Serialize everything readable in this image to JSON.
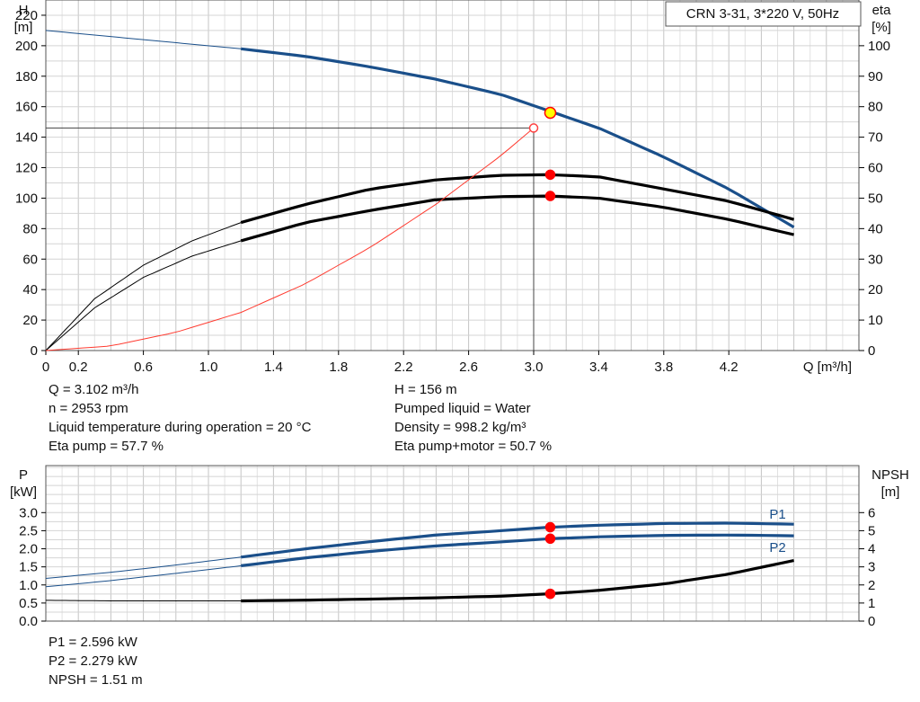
{
  "chart_data": [
    {
      "type": "line",
      "title": "CRN 3-31, 3*220 V, 50Hz",
      "xlabel": "Q [m³/h]",
      "ylabel_name": "H",
      "ylabel_unit": "[m]",
      "y2label_name": "eta",
      "y2label_unit": "[%]",
      "xlim": [
        0,
        5
      ],
      "ylim": [
        0,
        230
      ],
      "y2lim": [
        0,
        115
      ],
      "grid": true,
      "x_ticks": [
        "0",
        "0.2",
        "0.6",
        "1.0",
        "1.4",
        "1.8",
        "2.2",
        "2.6",
        "3.0",
        "3.4",
        "3.8",
        "4.2"
      ],
      "x_tick_values": [
        0,
        0.2,
        0.6,
        1.0,
        1.4,
        1.8,
        2.2,
        2.6,
        3.0,
        3.4,
        3.8,
        4.2
      ],
      "y_ticks": [
        "0",
        "20",
        "40",
        "60",
        "80",
        "100",
        "120",
        "140",
        "160",
        "180",
        "200",
        "220"
      ],
      "y_tick_values": [
        0,
        20,
        40,
        60,
        80,
        100,
        120,
        140,
        160,
        180,
        200,
        220
      ],
      "y2_ticks": [
        "0",
        "10",
        "20",
        "30",
        "40",
        "50",
        "60",
        "70",
        "80",
        "90",
        "100"
      ],
      "y2_tick_values": [
        0,
        10,
        20,
        30,
        40,
        50,
        60,
        70,
        80,
        90,
        100
      ],
      "series": [
        {
          "axis": "left",
          "color": "#1a4f8a",
          "thin_x": [
            0,
            1.2
          ],
          "thick_x": [
            1.2,
            4.6
          ],
          "x": [
            0,
            0.4,
            0.8,
            1.2,
            1.6,
            2.0,
            2.4,
            2.8,
            3.1,
            3.4,
            3.8,
            4.2,
            4.6
          ],
          "y": [
            210,
            206,
            202,
            198,
            193,
            186,
            178,
            168,
            157,
            146,
            127,
            106,
            81
          ]
        },
        {
          "axis": "right",
          "color": "#000000",
          "thin_x": [
            0,
            1.2
          ],
          "thick_x": [
            1.2,
            4.6
          ],
          "x": [
            0,
            0.3,
            0.6,
            0.9,
            1.2,
            1.6,
            2.0,
            2.4,
            2.8,
            3.1,
            3.4,
            3.8,
            4.2,
            4.6
          ],
          "y": [
            0,
            17,
            28,
            36,
            42,
            48,
            53,
            56,
            57.5,
            57.7,
            57,
            53,
            49,
            43
          ]
        },
        {
          "axis": "right",
          "color": "#000000",
          "thin_x": [
            0,
            1.2
          ],
          "thick_x": [
            1.2,
            4.6
          ],
          "x": [
            0,
            0.3,
            0.6,
            0.9,
            1.2,
            1.6,
            2.0,
            2.4,
            2.8,
            3.1,
            3.4,
            3.8,
            4.2,
            4.6
          ],
          "y": [
            0,
            14,
            24,
            31,
            36,
            42,
            46,
            49.5,
            50.5,
            50.7,
            50,
            47,
            43,
            38
          ]
        },
        {
          "axis": "left",
          "color": "#ff3b30",
          "thin_x": [
            0,
            3.0
          ],
          "thick_x": [
            3.0,
            3.0
          ],
          "x": [
            0,
            0.4,
            0.8,
            1.2,
            1.6,
            2.0,
            2.4,
            2.8,
            3.0
          ],
          "y": [
            0,
            3,
            12,
            25,
            44,
            68,
            96,
            128,
            146
          ]
        }
      ],
      "markers": [
        {
          "x": 3.102,
          "y": 156,
          "axis": "left",
          "fill": "#ffff00",
          "stroke": "#ff0000",
          "r": 6
        },
        {
          "x": 3.102,
          "y": 57.7,
          "axis": "right",
          "fill": "#ff0000",
          "stroke": "#ff0000",
          "r": 5
        },
        {
          "x": 3.102,
          "y": 50.7,
          "axis": "right",
          "fill": "#ff0000",
          "stroke": "#ff0000",
          "r": 5
        },
        {
          "x": 3.0,
          "y": 146,
          "axis": "left",
          "fill": "#ffffff",
          "stroke": "#ff4040",
          "r": 4.5
        }
      ],
      "crosshair": {
        "x": 3.0,
        "y": 146
      }
    },
    {
      "type": "line",
      "title": "",
      "xlabel": "",
      "ylabel_name": "P",
      "ylabel_unit": "[kW]",
      "y2label_name": "NPSH",
      "y2label_unit": "[m]",
      "xlim": [
        0,
        5
      ],
      "ylim": [
        0,
        4.3
      ],
      "y2lim": [
        0,
        8.6
      ],
      "grid": true,
      "y_ticks": [
        "0.0",
        "0.5",
        "1.0",
        "1.5",
        "2.0",
        "2.5",
        "3.0"
      ],
      "y_tick_values": [
        0,
        0.5,
        1.0,
        1.5,
        2.0,
        2.5,
        3.0
      ],
      "y2_ticks": [
        "0",
        "1",
        "2",
        "3",
        "4",
        "5",
        "6"
      ],
      "y2_tick_values": [
        0,
        1,
        2,
        3,
        4,
        5,
        6
      ],
      "series": [
        {
          "name": "P1",
          "axis": "left",
          "color": "#1a4f8a",
          "thin_x": [
            0,
            1.2
          ],
          "thick_x": [
            1.2,
            4.6
          ],
          "x": [
            0,
            0.4,
            0.8,
            1.2,
            1.6,
            2.0,
            2.4,
            2.8,
            3.1,
            3.4,
            3.8,
            4.2,
            4.6
          ],
          "y": [
            1.18,
            1.35,
            1.55,
            1.77,
            2.0,
            2.2,
            2.38,
            2.5,
            2.596,
            2.65,
            2.7,
            2.71,
            2.68
          ]
        },
        {
          "name": "P2",
          "axis": "left",
          "color": "#1a4f8a",
          "thin_x": [
            0,
            1.2
          ],
          "thick_x": [
            1.2,
            4.6
          ],
          "x": [
            0,
            0.4,
            0.8,
            1.2,
            1.6,
            2.0,
            2.4,
            2.8,
            3.1,
            3.4,
            3.8,
            4.2,
            4.6
          ],
          "y": [
            0.95,
            1.12,
            1.32,
            1.53,
            1.75,
            1.93,
            2.08,
            2.19,
            2.279,
            2.33,
            2.37,
            2.38,
            2.36
          ]
        },
        {
          "axis": "right",
          "color": "#000000",
          "thin_x": [
            0,
            1.2
          ],
          "thick_x": [
            1.2,
            4.6
          ],
          "x": [
            0,
            0.4,
            0.8,
            1.2,
            1.6,
            2.0,
            2.4,
            2.8,
            3.1,
            3.4,
            3.8,
            4.2,
            4.6
          ],
          "y": [
            1.15,
            1.12,
            1.12,
            1.12,
            1.16,
            1.22,
            1.29,
            1.38,
            1.51,
            1.7,
            2.05,
            2.6,
            3.35
          ]
        }
      ],
      "series_labels": [
        "P1",
        "P2"
      ],
      "markers": [
        {
          "x": 3.102,
          "y": 2.596,
          "axis": "left",
          "fill": "#ff0000",
          "stroke": "#ff0000",
          "r": 5
        },
        {
          "x": 3.102,
          "y": 2.279,
          "axis": "left",
          "fill": "#ff0000",
          "stroke": "#ff0000",
          "r": 5
        },
        {
          "x": 3.102,
          "y": 1.51,
          "axis": "right",
          "fill": "#ff0000",
          "stroke": "#ff0000",
          "r": 5
        }
      ]
    }
  ],
  "info_top_left": [
    "Q = 3.102 m³/h",
    "n = 2953 rpm",
    "Liquid temperature during operation = 20 °C",
    "Eta pump = 57.7 %"
  ],
  "info_top_right": [
    "H = 156 m",
    "Pumped liquid = Water",
    "Density = 998.2 kg/m³",
    "Eta pump+motor = 50.7 %"
  ],
  "info_bottom": [
    "P1 = 2.596 kW",
    "P2 = 2.279 kW",
    "NPSH = 1.51 m"
  ]
}
